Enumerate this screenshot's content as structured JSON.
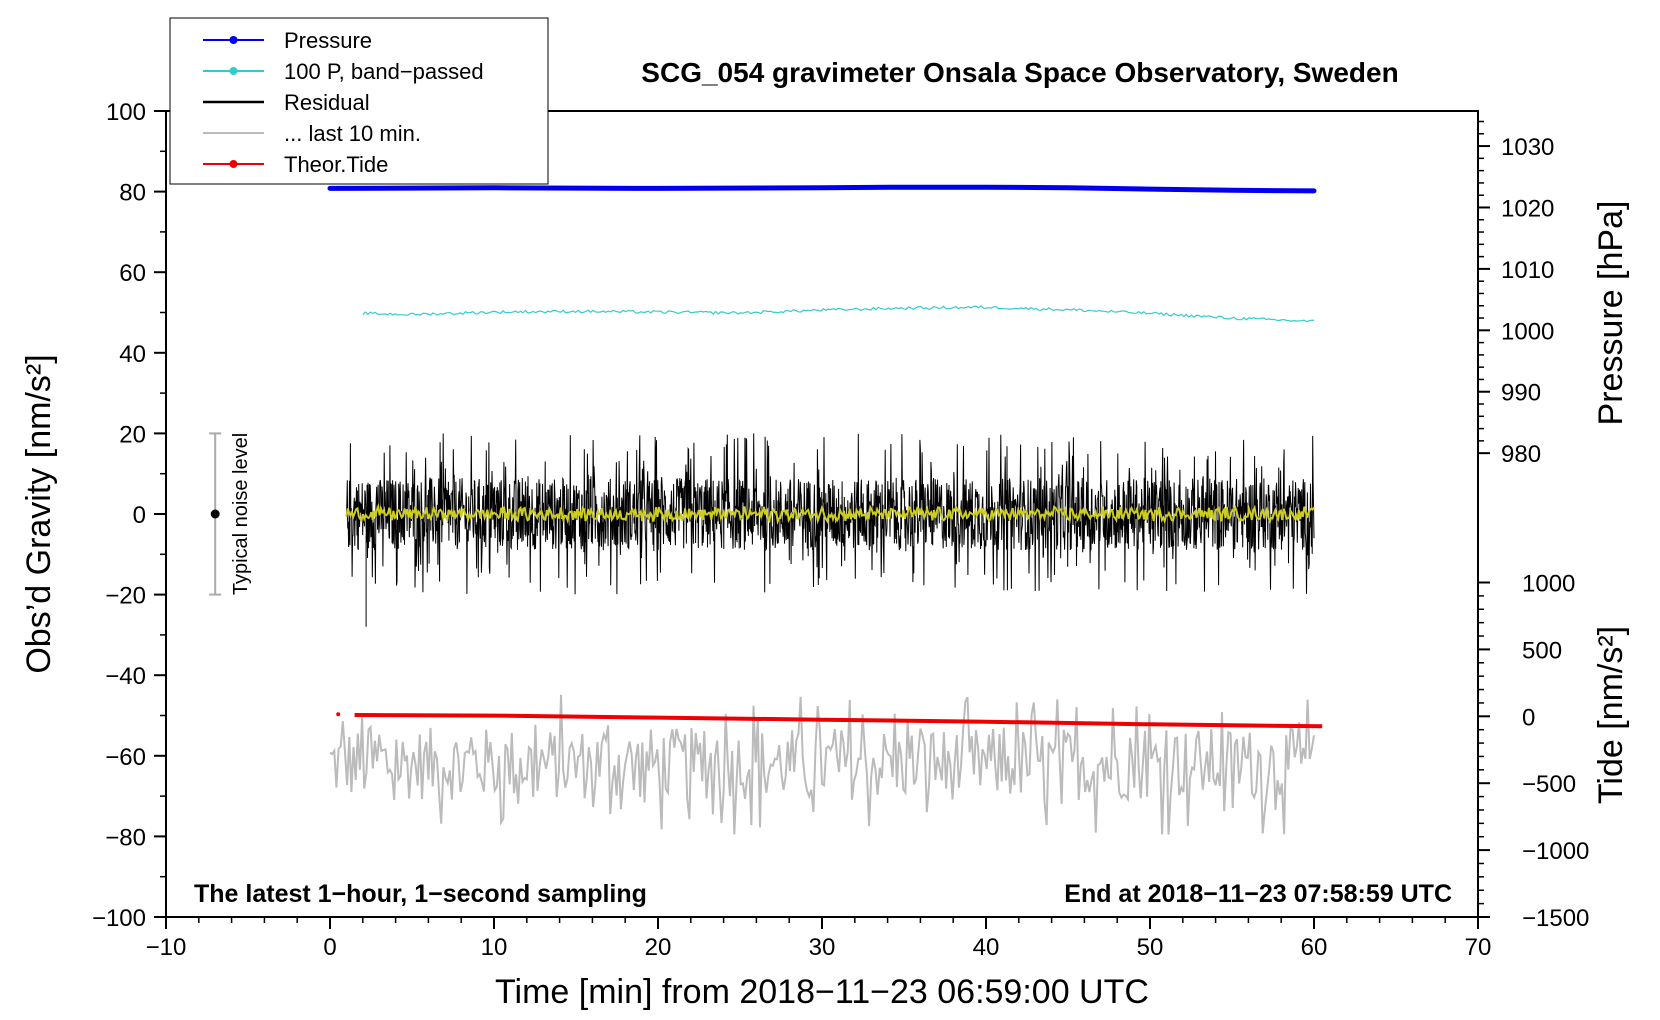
{
  "chart_data": {
    "type": "line",
    "title": "SCG_054 gravimeter Onsala Space Observatory, Sweden",
    "xlabel": "Time [min] from 2018−11−23 06:59:00 UTC",
    "ylabel_left": "Obs’d Gravity [nm/s²]",
    "ylabel_pressure": "Pressure [hPa]",
    "ylabel_tide": "Tide [nm/s²]",
    "xlim": [
      -10,
      70
    ],
    "ylim": [
      -100,
      100
    ],
    "x_ticks": [
      {
        "v": -10,
        "label": "−10"
      },
      {
        "v": 0,
        "label": "0"
      },
      {
        "v": 10,
        "label": "10"
      },
      {
        "v": 20,
        "label": "20"
      },
      {
        "v": 30,
        "label": "30"
      },
      {
        "v": 40,
        "label": "40"
      },
      {
        "v": 50,
        "label": "50"
      },
      {
        "v": 60,
        "label": "60"
      },
      {
        "v": 70,
        "label": "70"
      }
    ],
    "y_ticks": [
      {
        "v": 100,
        "label": "100"
      },
      {
        "v": 80,
        "label": "80"
      },
      {
        "v": 60,
        "label": "60"
      },
      {
        "v": 40,
        "label": "40"
      },
      {
        "v": 20,
        "label": "20"
      },
      {
        "v": 0,
        "label": "0"
      },
      {
        "v": -20,
        "label": "−20"
      },
      {
        "v": -40,
        "label": "−40"
      },
      {
        "v": -60,
        "label": "−60"
      },
      {
        "v": -80,
        "label": "−80"
      },
      {
        "v": -100,
        "label": "−100"
      }
    ],
    "pressure_axis": {
      "ticks": [
        {
          "v": 1030,
          "label": "1030"
        },
        {
          "v": 1020,
          "label": "1020"
        },
        {
          "v": 1010,
          "label": "1010"
        },
        {
          "v": 1000,
          "label": "1000"
        },
        {
          "v": 990,
          "label": "990"
        },
        {
          "v": 980,
          "label": "980"
        }
      ],
      "gravity_equiv": {
        "p1": 1030,
        "g1": 91.3,
        "p2": 980,
        "g2": 15.1
      }
    },
    "tide_axis": {
      "ticks": [
        {
          "v": 1000,
          "label": "1000"
        },
        {
          "v": 500,
          "label": "500"
        },
        {
          "v": 0,
          "label": "0"
        },
        {
          "v": -500,
          "label": "−500"
        },
        {
          "v": -1000,
          "label": "−1000"
        },
        {
          "v": -1500,
          "label": "−1500"
        }
      ],
      "gravity_equiv": {
        "t1": 1000,
        "g1": -17,
        "t2": -1500,
        "g2": -100
      }
    },
    "series": [
      {
        "name": "Pressure",
        "color": "#0000ee",
        "x": [
          0,
          10,
          20,
          30,
          35,
          40,
          45,
          50,
          55,
          60
        ],
        "y": [
          1023.1,
          1023.2,
          1023.1,
          1023.2,
          1023.3,
          1023.3,
          1023.2,
          1023.0,
          1022.8,
          1022.7
        ]
      },
      {
        "name": "100 P, band−passed",
        "color": "#33cccc",
        "x": [
          2,
          5,
          10,
          15,
          20,
          25,
          30,
          35,
          40,
          45,
          50,
          55,
          60
        ],
        "y": [
          49.8,
          49.5,
          50.1,
          50.3,
          50.1,
          49.9,
          50.6,
          51.1,
          51.3,
          50.7,
          49.8,
          48.6,
          47.8
        ]
      },
      {
        "name": "Residual",
        "color": "#000000",
        "x_range": [
          1,
          60
        ],
        "approx_range": [
          -28,
          22
        ],
        "center": 0
      },
      {
        "name": "... last 10 min.",
        "color": "#bbbbbb",
        "x_range": [
          0,
          60
        ],
        "approx_range": [
          -82,
          -41
        ],
        "center": -62
      },
      {
        "name": "Theor.Tide",
        "color": "#ee0000",
        "x": [
          0.5,
          1.5,
          10,
          20,
          30,
          40,
          50,
          60.5
        ],
        "y": [
          15,
          10,
          5,
          -10,
          -25,
          -40,
          -60,
          -75
        ]
      }
    ],
    "legend": {
      "position": "top-left",
      "items": [
        {
          "label": "Pressure",
          "color": "#0000ee",
          "style": "line-dot"
        },
        {
          "label": "100 P, band−passed",
          "color": "#33cccc",
          "style": "line-dot"
        },
        {
          "label": "Residual",
          "color": "#000000",
          "style": "line"
        },
        {
          "label": "... last 10 min.",
          "color": "#bbbbbb",
          "style": "line"
        },
        {
          "label": "Theor.Tide",
          "color": "#ee0000",
          "style": "line-dot"
        }
      ]
    },
    "annotations": {
      "bottom_left": "The latest 1−hour, 1−second sampling",
      "bottom_right": "End at 2018−11−23 07:58:59 UTC",
      "noise_label": "Typical noise level",
      "noise_bar": {
        "x": -7,
        "center": 0,
        "low": -20,
        "high": 20
      }
    }
  }
}
